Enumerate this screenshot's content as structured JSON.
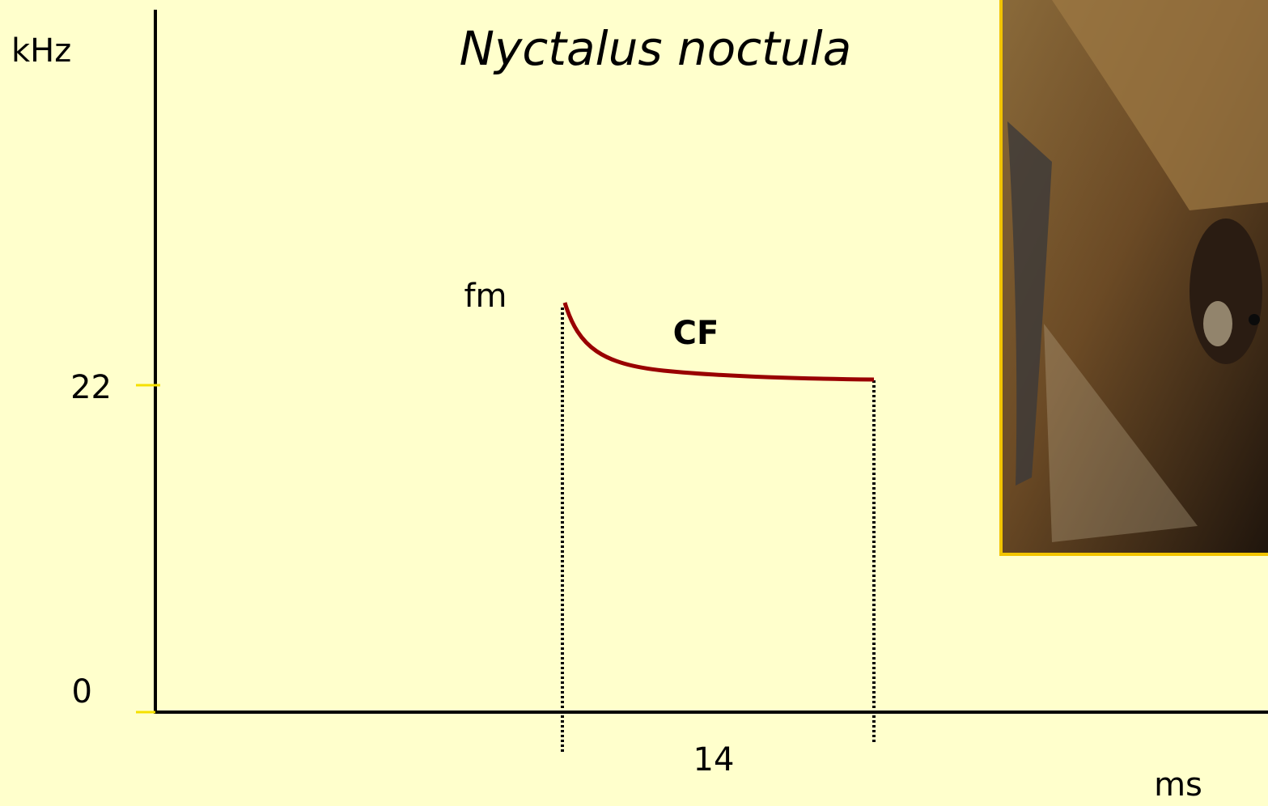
{
  "title": "Nyctalus noctula",
  "axes": {
    "y_label": "kHz",
    "x_label": "ms",
    "y_ticks": [
      22,
      0
    ]
  },
  "call": {
    "fm_label": "fm",
    "cf_label": "CF",
    "duration": 14
  }
}
